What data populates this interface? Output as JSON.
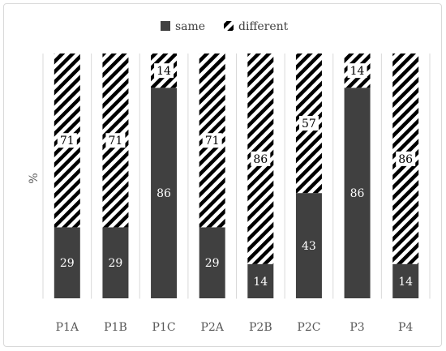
{
  "chart_data": {
    "type": "bar",
    "stacked": true,
    "percent": true,
    "categories": [
      "P1A",
      "P1B",
      "P1C",
      "P2A",
      "P2B",
      "P2C",
      "P3",
      "P4"
    ],
    "series": [
      {
        "name": "same",
        "values": [
          29,
          29,
          86,
          29,
          14,
          43,
          86,
          14
        ],
        "color": "#404040",
        "pattern": "solid"
      },
      {
        "name": "different",
        "values": [
          71,
          71,
          14,
          71,
          86,
          57,
          14,
          86
        ],
        "color": "#000000",
        "pattern": "diagonal-hatch"
      }
    ],
    "ylabel": "%",
    "ylim": [
      0,
      100
    ],
    "legend_position": "top-center",
    "grid": false,
    "category_separators": true
  }
}
